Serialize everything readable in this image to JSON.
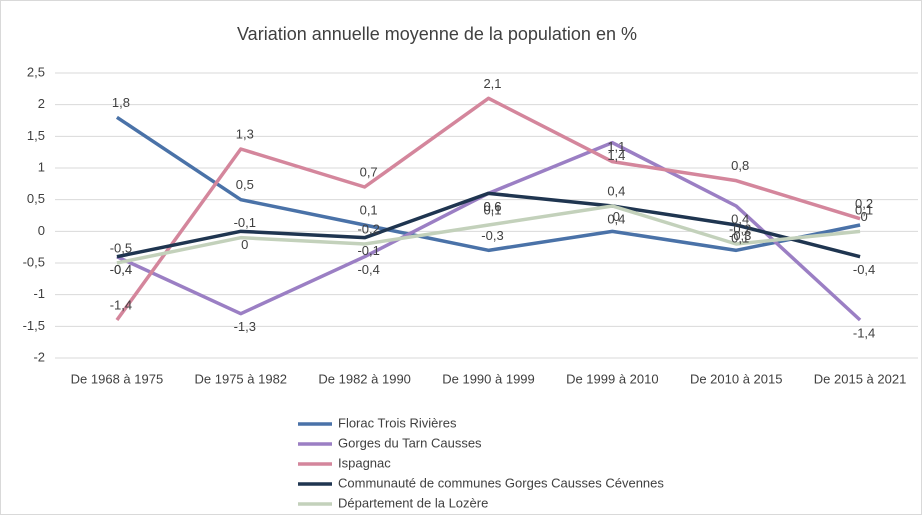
{
  "chart_data": {
    "type": "line",
    "title": "Variation annuelle moyenne de la population en %",
    "categories": [
      "De 1968 à 1975",
      "De 1975 à 1982",
      "De 1982 à 1990",
      "De 1990 à 1999",
      "De 1999 à 2010",
      "De 2010 à 2015",
      "De 2015 à 2021"
    ],
    "ylim": [
      -2,
      2.5
    ],
    "yticks": [
      -2,
      {
        "value": -1.5,
        "label": "-1,5"
      },
      -1,
      {
        "value": -0.5,
        "label": "-0,5"
      },
      0,
      {
        "value": 0.5,
        "label": "0,5"
      },
      1,
      {
        "value": 1.5,
        "label": "1,5"
      },
      2,
      {
        "value": 2.5,
        "label": "2,5"
      }
    ],
    "grid": true,
    "legend": "bottom",
    "series": [
      {
        "name": "Florac Trois Rivières",
        "color": "#4a72a8",
        "values": [
          1.8,
          0.5,
          0.1,
          -0.3,
          0,
          -0.3,
          0.1
        ],
        "value_labels": [
          "1,8",
          "0,5",
          "0,1",
          "-0,3",
          "0",
          "-0,3",
          "0,1"
        ]
      },
      {
        "name": "Gorges du Tarn Causses",
        "color": "#9b7fc4",
        "values": [
          -0.4,
          -1.3,
          -0.4,
          0.6,
          1.4,
          0.4,
          -1.4
        ],
        "value_labels": [
          "-0,4",
          "-1,3",
          "-0,4",
          "0,6",
          "1,4",
          "0,4",
          "-1,4"
        ]
      },
      {
        "name": "Ispagnac",
        "color": "#d4869c",
        "values": [
          -1.4,
          1.3,
          0.7,
          2.1,
          1.1,
          0.8,
          0.2
        ],
        "value_labels": [
          "-1,4",
          "1,3",
          "0,7",
          "2,1",
          "1,1",
          "0,8",
          "0,2"
        ]
      },
      {
        "name": "Communauté de communes Gorges Causses Cévennes",
        "color": "#1f3550",
        "values": [
          -0.4,
          0,
          -0.1,
          0.6,
          0.4,
          0.1,
          -0.4
        ],
        "value_labels": [
          "-0,4",
          "0",
          "-0,1",
          "0,6",
          "0,4",
          "0,1",
          "-0,4"
        ]
      },
      {
        "name": "Département de la Lozère",
        "color": "#c3d1bb",
        "values": [
          -0.5,
          -0.1,
          -0.2,
          0.1,
          0.4,
          -0.2,
          0
        ],
        "value_labels": [
          "-0,5",
          "-0,1",
          "-0,2",
          "0,1",
          "0,4",
          "-0,2",
          "0"
        ]
      }
    ]
  }
}
